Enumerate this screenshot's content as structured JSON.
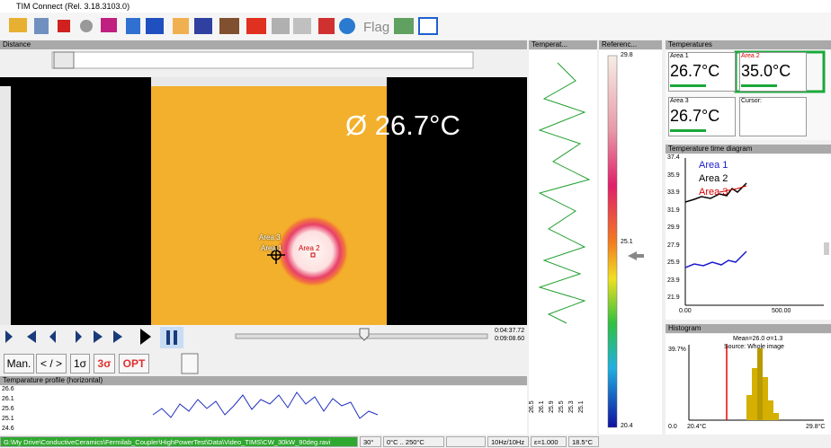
{
  "window": {
    "title": "TIM Connect (Rel. 3.18.3103.0)"
  },
  "toolbar": {
    "flag": "Flag"
  },
  "video": {
    "header": "Distance",
    "mean_overlay": "Ø 26.7°C",
    "area_labels": [
      "Area 3",
      "Area 1",
      "Area 2"
    ],
    "time_current": "0:04:37.72",
    "time_total": "0:09:08.60",
    "buttons": [
      "Man.",
      "< / >",
      "1σ",
      "3σ",
      "OPT"
    ]
  },
  "profile_vertical": {
    "header": "Temperat...",
    "ticks": [
      "26.5",
      "26.1",
      "25.9",
      "25.5",
      "25.3",
      "25.1"
    ]
  },
  "reference": {
    "header": "Referenc...",
    "max": "29.8",
    "mid": "25.1",
    "min": "20.4"
  },
  "temperatures": {
    "header": "Temperatures",
    "cells": [
      {
        "label": "Area 1",
        "value": "26.7°C"
      },
      {
        "label": "Area 2",
        "value": "35.0°C"
      },
      {
        "label": "Area 3",
        "value": "26.7°C"
      },
      {
        "label": "Cursor:"
      }
    ]
  },
  "time_diagram": {
    "header": "Temperature time diagram",
    "yticks": [
      "37.4",
      "35.9",
      "33.9",
      "31.9",
      "29.9",
      "27.9",
      "25.9",
      "23.9",
      "21.9"
    ],
    "xticks": [
      "0.00",
      "500.00"
    ],
    "legend": [
      "Area 1",
      "Area 2",
      "Area 3"
    ]
  },
  "histogram": {
    "header": "Histogram",
    "stats": "Mean=26.0 σ=1.3",
    "source": "Source: Whole image",
    "ymax": "39.7%",
    "ymin": "0.0",
    "xmin": "20.4°C",
    "xmax": "29.8°C"
  },
  "profile_horizontal": {
    "header": "Temparature profile (horizontal)",
    "yticks": [
      "26.6",
      "26.1",
      "25.6",
      "25.1",
      "24.6"
    ]
  },
  "status": {
    "path": "G:\\My Drive\\ConductiveCeramics\\Fermilab_Coupler\\HighPowerTest\\Data\\Video_TIMS\\CW_30kW_90deg.ravi",
    "fov": "30°",
    "range": "0°C .. 250°C",
    "rate": "10Hz/10Hz",
    "emissivity": "ε=1.000",
    "ambient": "18.5°C"
  }
}
